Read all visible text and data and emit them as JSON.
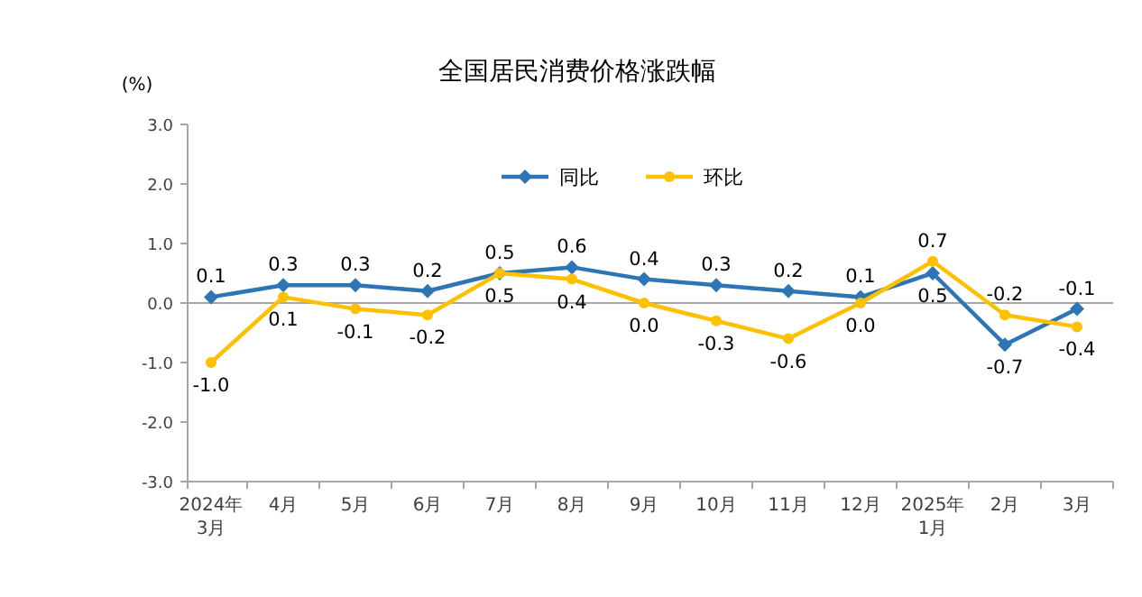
{
  "chart_data": {
    "type": "line",
    "title": "全国居民消费价格涨跌幅",
    "ylabel": "(%)",
    "categories": [
      "2024年\n3月",
      "4月",
      "5月",
      "6月",
      "7月",
      "8月",
      "9月",
      "10月",
      "11月",
      "12月",
      "2025年\n1月",
      "2月",
      "3月"
    ],
    "series": [
      {
        "name": "同比",
        "color": "#2e75b6",
        "marker": "diamond",
        "values": [
          0.1,
          0.3,
          0.3,
          0.2,
          0.5,
          0.6,
          0.4,
          0.3,
          0.2,
          0.1,
          0.5,
          -0.7,
          -0.1
        ],
        "value_labels": [
          "0.1",
          "0.3",
          "0.3",
          "0.2",
          "0.5",
          "0.6",
          "0.4",
          "0.3",
          "0.2",
          "0.1",
          "0.5",
          "-0.7",
          "-0.1"
        ]
      },
      {
        "name": "环比",
        "color": "#ffc000",
        "marker": "circle",
        "values": [
          -1.0,
          0.1,
          -0.1,
          -0.2,
          0.5,
          0.4,
          0.0,
          -0.3,
          -0.6,
          0.0,
          0.7,
          -0.2,
          -0.4
        ],
        "value_labels": [
          "-1.0",
          "0.1",
          "-0.1",
          "-0.2",
          "0.5",
          "0.4",
          "0.0",
          "-0.3",
          "-0.6",
          "0.0",
          "0.7",
          "-0.2",
          "-0.4"
        ]
      }
    ],
    "ylim": [
      -3.0,
      3.0
    ],
    "yticks": [
      {
        "value": 3.0,
        "label": "3.0"
      },
      {
        "value": 2.0,
        "label": "2.0"
      },
      {
        "value": 1.0,
        "label": "1.0"
      },
      {
        "value": 0.0,
        "label": "0.0"
      },
      {
        "value": -1.0,
        "label": "-1.0"
      },
      {
        "value": -2.0,
        "label": "-2.0"
      },
      {
        "value": -3.0,
        "label": "-3.0"
      }
    ],
    "ref_lines": [
      {
        "axis": "y",
        "value": 0,
        "color": "#a6a6a6"
      }
    ],
    "legend": "top",
    "grid": false
  }
}
